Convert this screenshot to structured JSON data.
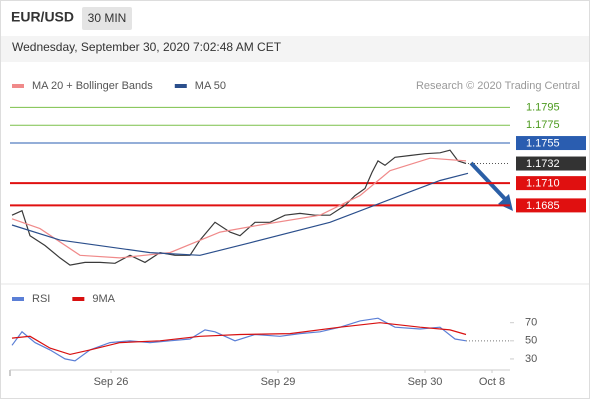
{
  "header": {
    "symbol": "EUR/USD",
    "interval": "30 MIN",
    "timestamp": "Wednesday, September 30, 2020 7:02:48 AM CET"
  },
  "chart_data": [
    {
      "type": "line",
      "credit": "Research © 2020 Trading Central",
      "xlim": [
        0,
        100
      ],
      "ylim": [
        1.1599,
        1.1837
      ],
      "levels": [
        {
          "value": 1.1795,
          "label": "1.1795",
          "color": "#7cc04a",
          "style": "text"
        },
        {
          "value": 1.1775,
          "label": "1.1775",
          "color": "#7cc04a",
          "style": "text"
        },
        {
          "value": 1.1755,
          "label": "1.1755",
          "color": "#2a5db0",
          "style": "tag"
        },
        {
          "value": 1.1732,
          "label": "1.1732",
          "color": "#333333",
          "style": "tag"
        },
        {
          "value": 1.171,
          "label": "1.1710",
          "color": "#e01010",
          "style": "tag"
        },
        {
          "value": 1.1685,
          "label": "1.1685",
          "color": "#e01010",
          "style": "tag"
        }
      ],
      "series": [
        {
          "color": "#3a3a3a",
          "x": [
            0.4,
            2.4,
            4,
            7,
            10,
            12,
            15,
            18,
            21,
            24,
            27,
            30,
            33,
            36,
            38,
            41,
            44,
            46,
            49,
            52,
            55,
            58,
            61,
            64,
            67,
            69,
            71,
            72.4,
            73.6,
            75,
            77,
            80,
            83,
            86,
            88,
            89.6,
            91.2
          ],
          "values": [
            1.1674,
            1.1679,
            1.1651,
            1.164,
            1.1626,
            1.1618,
            1.1621,
            1.1621,
            1.162,
            1.1629,
            1.1621,
            1.1632,
            1.1629,
            1.1629,
            1.1646,
            1.1666,
            1.1655,
            1.1651,
            1.1666,
            1.1666,
            1.1674,
            1.1676,
            1.1674,
            1.1674,
            1.1685,
            1.1696,
            1.1704,
            1.1722,
            1.1735,
            1.173,
            1.1739,
            1.1741,
            1.1743,
            1.1744,
            1.1747,
            1.1735,
            1.1732
          ]
        },
        {
          "name": "MA 20 + Bollinger Bands",
          "color": "#f08a8a",
          "x": [
            0.4,
            6,
            14,
            22,
            32,
            42,
            50,
            62,
            70,
            76,
            84,
            91.2
          ],
          "values": [
            1.167,
            1.1659,
            1.1629,
            1.1626,
            1.1632,
            1.1655,
            1.1663,
            1.1674,
            1.1696,
            1.1724,
            1.1738,
            1.1735
          ]
        },
        {
          "name": "MA 50",
          "color": "#2b4f8c",
          "x": [
            0.4,
            10,
            28,
            38,
            48,
            64,
            78,
            86,
            91.6
          ],
          "values": [
            1.1663,
            1.1646,
            1.1632,
            1.1629,
            1.1643,
            1.1666,
            1.1696,
            1.1713,
            1.1721
          ]
        }
      ]
    },
    {
      "type": "line",
      "xlim": [
        0,
        100
      ],
      "ylim": [
        20,
        84
      ],
      "yticks": [
        70,
        50,
        30
      ],
      "xticks": [
        {
          "value": 20.2,
          "label": "Sep 26"
        },
        {
          "value": 53.6,
          "label": "Sep 29"
        },
        {
          "value": 83,
          "label": "Sep 30"
        },
        {
          "value": 96.4,
          "label": "Oct 8"
        }
      ],
      "series": [
        {
          "name": "RSI",
          "color": "#5b7fd6",
          "x": [
            0.4,
            2.4,
            5,
            8,
            11,
            13,
            16,
            20,
            24,
            28,
            32,
            36,
            39,
            41,
            45,
            49,
            54,
            58,
            62,
            66,
            70,
            73.6,
            77,
            82,
            86,
            89,
            91.2
          ],
          "values": [
            45,
            60,
            48,
            40,
            30,
            28,
            40,
            48,
            50,
            48,
            50,
            52,
            62,
            60,
            50,
            57,
            55,
            58,
            60,
            65,
            72,
            75,
            65,
            63,
            65,
            52,
            50
          ]
        },
        {
          "name": "9MA",
          "color": "#d81010",
          "x": [
            0.4,
            4,
            8,
            12,
            16,
            22,
            30,
            38,
            46,
            56,
            66,
            74,
            82,
            88,
            91.2
          ],
          "values": [
            53,
            55,
            42,
            35,
            40,
            48,
            50,
            55,
            57,
            58,
            65,
            70,
            65,
            62,
            57
          ]
        }
      ]
    }
  ]
}
